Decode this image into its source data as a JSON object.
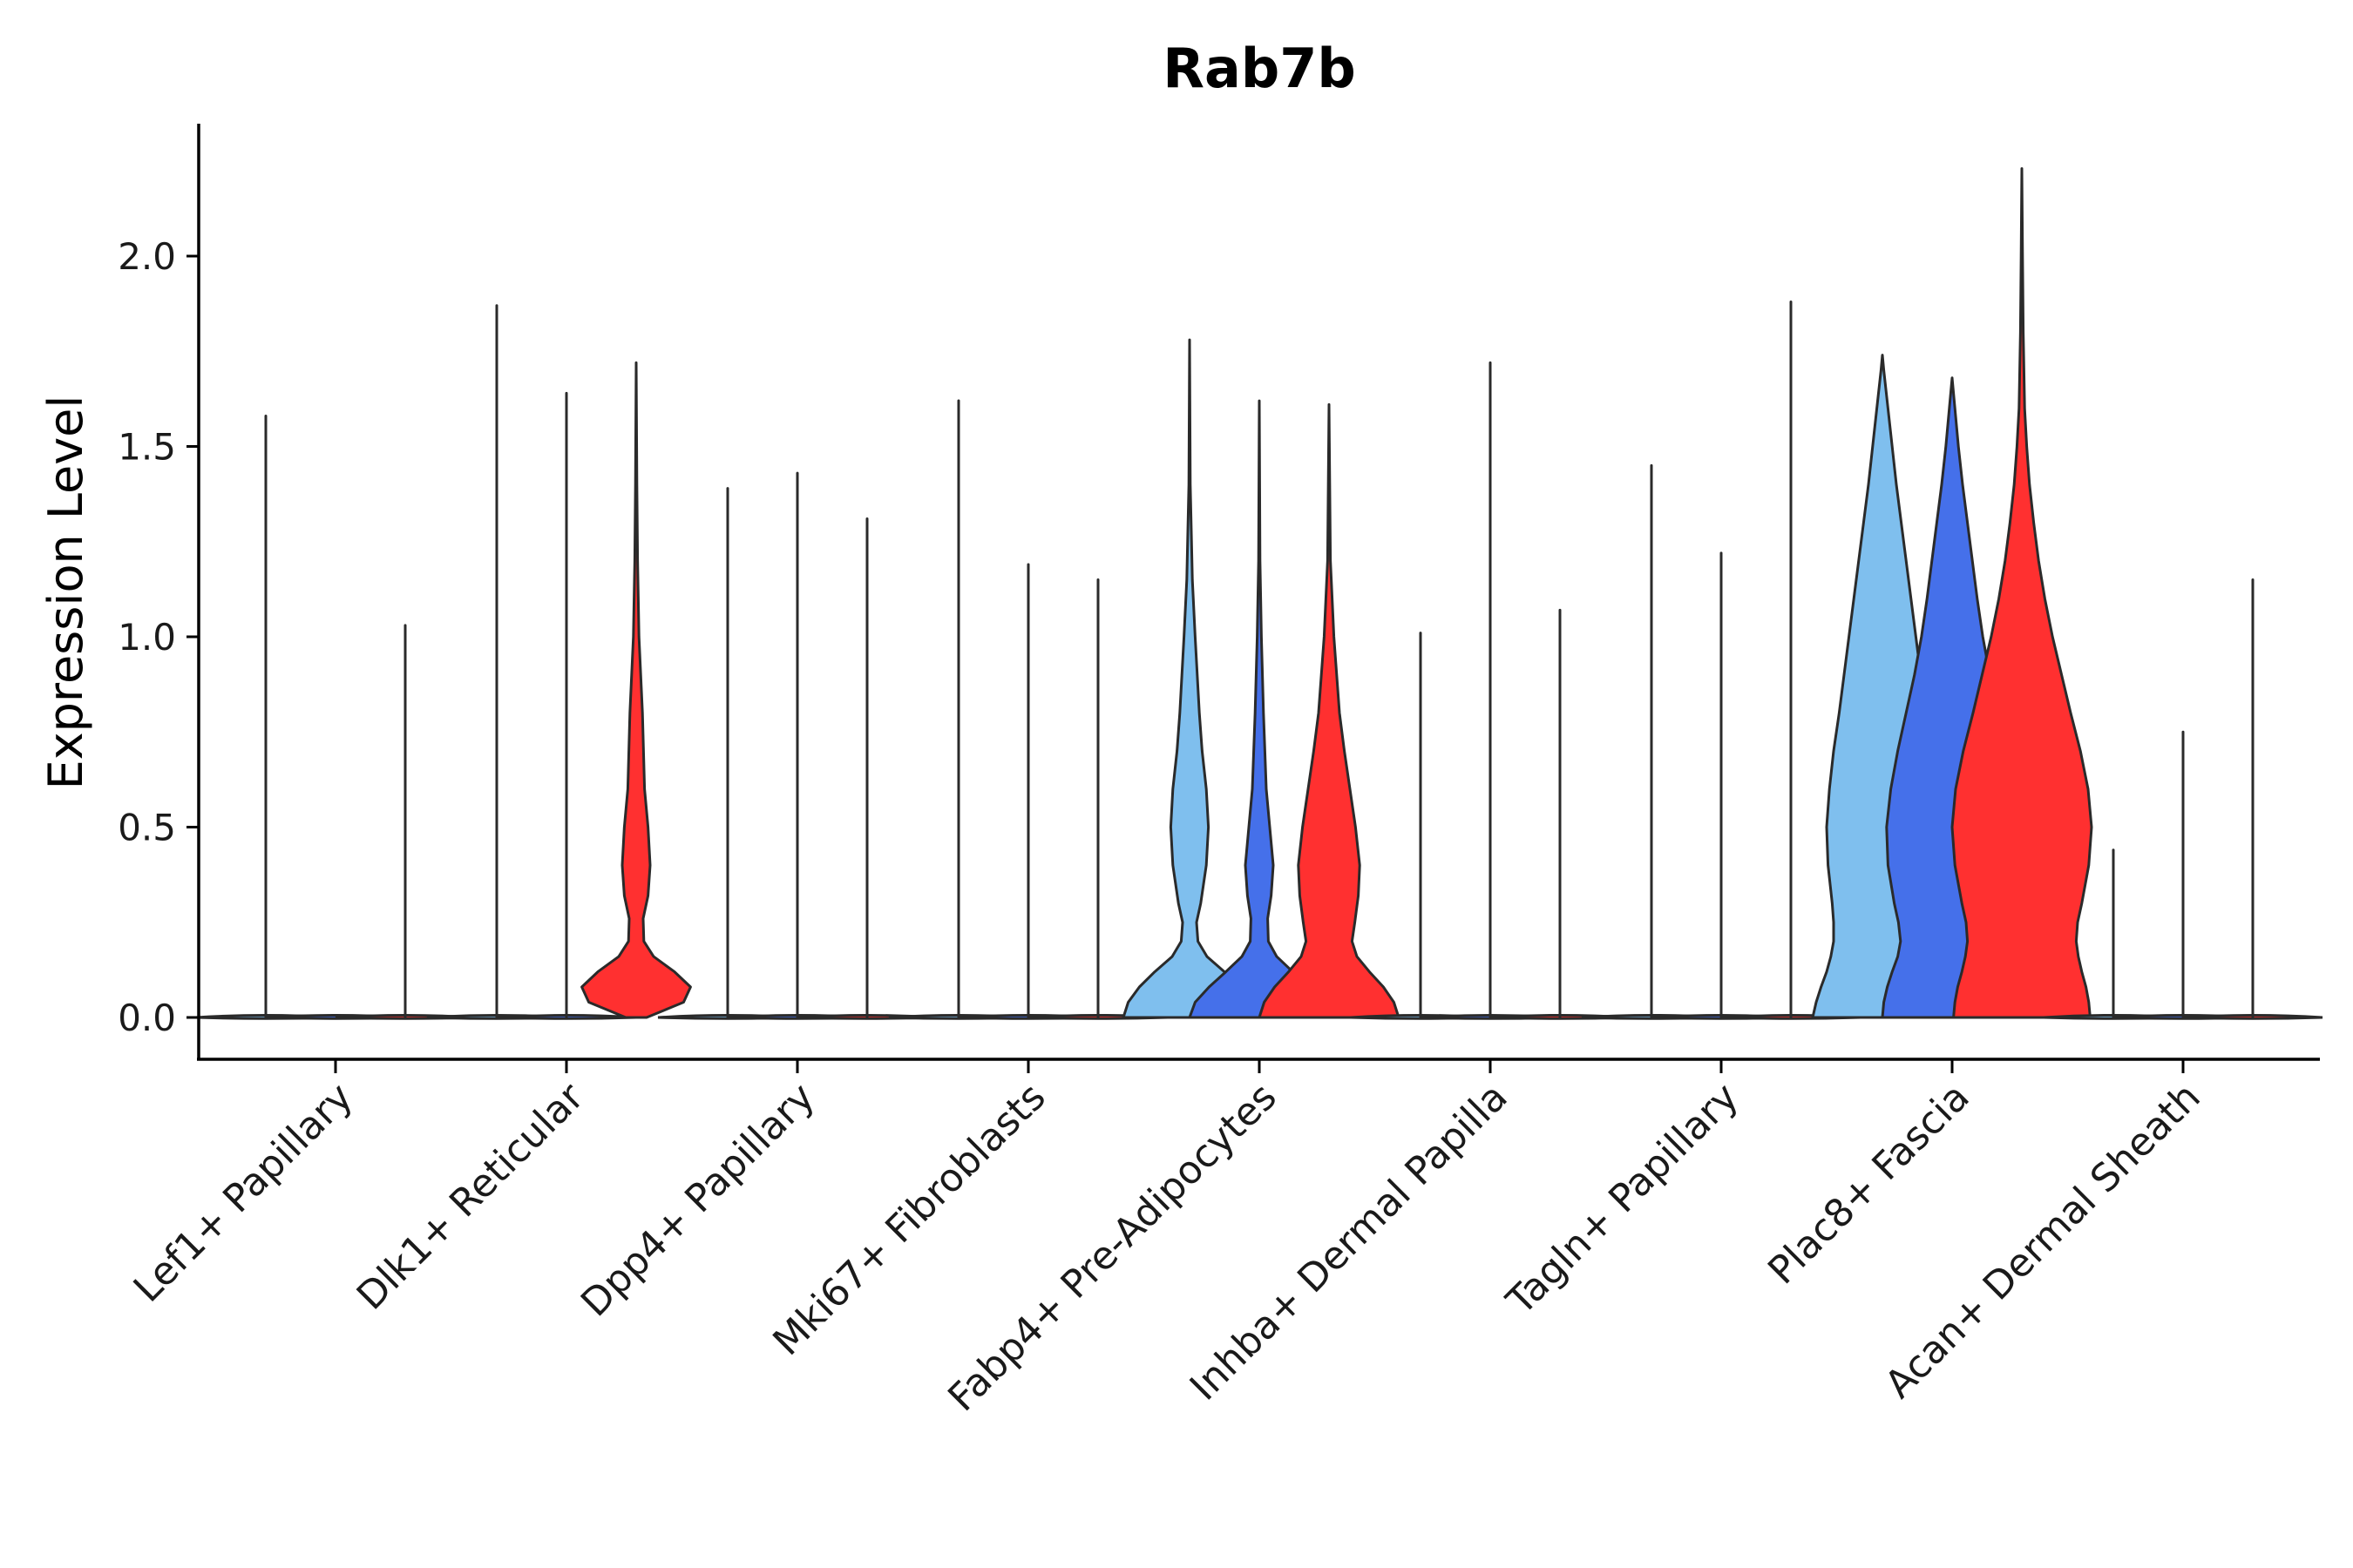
{
  "chart_data": {
    "type": "violin",
    "title": "Rab7b",
    "xlabel": "",
    "ylabel": "Expression Level",
    "ylim": [
      -0.11,
      2.35
    ],
    "yticks": [
      "0.0",
      "0.5",
      "1.0",
      "1.5",
      "2.0"
    ],
    "ytick_values": [
      0.0,
      0.5,
      1.0,
      1.5,
      2.0
    ],
    "colors": {
      "light_blue": "#7fbfee",
      "royal_blue": "#4570ea",
      "red": "#ff3030",
      "outline": "#2a2a2a"
    },
    "series_colors": [
      "#7fbfee",
      "#4570ea",
      "#ff3030"
    ],
    "categories": [
      {
        "label": "Lef1+ Papillary",
        "violins": [
          {
            "max": 1.58,
            "profile": []
          },
          {
            "max": 0.0,
            "profile": []
          },
          {
            "max": 1.03,
            "profile": []
          }
        ]
      },
      {
        "label": "Dlk1+ Reticular",
        "violins": [
          {
            "max": 1.87,
            "profile": []
          },
          {
            "max": 1.64,
            "profile": []
          },
          {
            "max": 1.72,
            "profile": [
              [
                0,
                0.15
              ],
              [
                0.04,
                0.68
              ],
              [
                0.08,
                0.78
              ],
              [
                0.12,
                0.55
              ],
              [
                0.16,
                0.25
              ],
              [
                0.2,
                0.11
              ],
              [
                0.26,
                0.1
              ],
              [
                0.32,
                0.17
              ],
              [
                0.4,
                0.2
              ],
              [
                0.5,
                0.17
              ],
              [
                0.6,
                0.12
              ],
              [
                0.8,
                0.09
              ],
              [
                1.0,
                0.04
              ],
              [
                1.2,
                0.02
              ],
              [
                1.4,
                0.01
              ],
              [
                1.72,
                0.0
              ]
            ]
          }
        ]
      },
      {
        "label": "Dpp4+ Papillary",
        "violins": [
          {
            "max": 1.39,
            "profile": []
          },
          {
            "max": 1.43,
            "profile": []
          },
          {
            "max": 1.31,
            "profile": []
          }
        ]
      },
      {
        "label": "Mki67+ Fibroblasts",
        "violins": [
          {
            "max": 1.62,
            "profile": []
          },
          {
            "max": 1.19,
            "profile": []
          },
          {
            "max": 1.15,
            "profile": []
          }
        ]
      },
      {
        "label": "Fabp4+ Pre-Adipocytes",
        "violins": [
          {
            "max": 1.78,
            "profile": [
              [
                0,
                0.95
              ],
              [
                0.04,
                0.88
              ],
              [
                0.08,
                0.72
              ],
              [
                0.12,
                0.5
              ],
              [
                0.16,
                0.25
              ],
              [
                0.2,
                0.12
              ],
              [
                0.25,
                0.1
              ],
              [
                0.3,
                0.16
              ],
              [
                0.4,
                0.24
              ],
              [
                0.5,
                0.27
              ],
              [
                0.6,
                0.24
              ],
              [
                0.7,
                0.18
              ],
              [
                0.8,
                0.14
              ],
              [
                1.0,
                0.08
              ],
              [
                1.15,
                0.04
              ],
              [
                1.4,
                0.01
              ],
              [
                1.78,
                0.0
              ]
            ]
          },
          {
            "max": 1.62,
            "profile": [
              [
                0,
                1.0
              ],
              [
                0.04,
                0.92
              ],
              [
                0.08,
                0.72
              ],
              [
                0.12,
                0.48
              ],
              [
                0.16,
                0.25
              ],
              [
                0.2,
                0.13
              ],
              [
                0.26,
                0.12
              ],
              [
                0.32,
                0.17
              ],
              [
                0.4,
                0.2
              ],
              [
                0.48,
                0.16
              ],
              [
                0.6,
                0.1
              ],
              [
                0.8,
                0.06
              ],
              [
                1.0,
                0.03
              ],
              [
                1.2,
                0.01
              ],
              [
                1.62,
                0.0
              ]
            ]
          },
          {
            "max": 1.61,
            "profile": [
              [
                0,
                1.0
              ],
              [
                0.04,
                0.93
              ],
              [
                0.08,
                0.78
              ],
              [
                0.12,
                0.58
              ],
              [
                0.16,
                0.4
              ],
              [
                0.2,
                0.33
              ],
              [
                0.25,
                0.37
              ],
              [
                0.32,
                0.42
              ],
              [
                0.4,
                0.44
              ],
              [
                0.5,
                0.38
              ],
              [
                0.6,
                0.3
              ],
              [
                0.7,
                0.22
              ],
              [
                0.8,
                0.15
              ],
              [
                1.0,
                0.07
              ],
              [
                1.2,
                0.02
              ],
              [
                1.61,
                0.0
              ]
            ]
          }
        ]
      },
      {
        "label": "Inhba+ Dermal Papilla",
        "violins": [
          {
            "max": 1.01,
            "profile": []
          },
          {
            "max": 1.72,
            "profile": []
          },
          {
            "max": 1.07,
            "profile": []
          }
        ]
      },
      {
        "label": "Tagln+ Papillary",
        "violins": [
          {
            "max": 1.45,
            "profile": []
          },
          {
            "max": 1.22,
            "profile": []
          },
          {
            "max": 1.88,
            "profile": []
          }
        ]
      },
      {
        "label": "Plac8+ Fascia",
        "violins": [
          {
            "max": 1.74,
            "profile": [
              [
                0,
                1.0
              ],
              [
                0.04,
                0.95
              ],
              [
                0.08,
                0.88
              ],
              [
                0.12,
                0.8
              ],
              [
                0.16,
                0.74
              ],
              [
                0.2,
                0.7
              ],
              [
                0.25,
                0.7
              ],
              [
                0.3,
                0.72
              ],
              [
                0.4,
                0.78
              ],
              [
                0.5,
                0.8
              ],
              [
                0.6,
                0.76
              ],
              [
                0.7,
                0.7
              ],
              [
                0.8,
                0.62
              ],
              [
                0.9,
                0.55
              ],
              [
                1.0,
                0.48
              ],
              [
                1.1,
                0.41
              ],
              [
                1.2,
                0.34
              ],
              [
                1.3,
                0.27
              ],
              [
                1.4,
                0.2
              ],
              [
                1.5,
                0.14
              ],
              [
                1.6,
                0.08
              ],
              [
                1.7,
                0.02
              ],
              [
                1.74,
                0.0
              ]
            ]
          },
          {
            "max": 1.68,
            "profile": [
              [
                0,
                1.0
              ],
              [
                0.04,
                0.98
              ],
              [
                0.08,
                0.93
              ],
              [
                0.12,
                0.86
              ],
              [
                0.16,
                0.78
              ],
              [
                0.2,
                0.74
              ],
              [
                0.25,
                0.77
              ],
              [
                0.3,
                0.83
              ],
              [
                0.4,
                0.92
              ],
              [
                0.5,
                0.94
              ],
              [
                0.6,
                0.88
              ],
              [
                0.7,
                0.78
              ],
              [
                0.8,
                0.66
              ],
              [
                0.9,
                0.54
              ],
              [
                1.0,
                0.44
              ],
              [
                1.1,
                0.36
              ],
              [
                1.2,
                0.29
              ],
              [
                1.3,
                0.22
              ],
              [
                1.4,
                0.15
              ],
              [
                1.5,
                0.09
              ],
              [
                1.6,
                0.04
              ],
              [
                1.68,
                0.0
              ]
            ]
          },
          {
            "max": 2.23,
            "profile": [
              [
                0,
                0.98
              ],
              [
                0.04,
                0.96
              ],
              [
                0.08,
                0.92
              ],
              [
                0.12,
                0.86
              ],
              [
                0.16,
                0.81
              ],
              [
                0.2,
                0.78
              ],
              [
                0.25,
                0.8
              ],
              [
                0.3,
                0.86
              ],
              [
                0.4,
                0.96
              ],
              [
                0.5,
                1.0
              ],
              [
                0.6,
                0.95
              ],
              [
                0.7,
                0.84
              ],
              [
                0.8,
                0.7
              ],
              [
                0.9,
                0.57
              ],
              [
                1.0,
                0.44
              ],
              [
                1.1,
                0.33
              ],
              [
                1.2,
                0.24
              ],
              [
                1.3,
                0.17
              ],
              [
                1.4,
                0.11
              ],
              [
                1.5,
                0.07
              ],
              [
                1.6,
                0.04
              ],
              [
                1.8,
                0.02
              ],
              [
                2.0,
                0.01
              ],
              [
                2.23,
                0.0
              ]
            ]
          }
        ]
      },
      {
        "label": "Acan+ Dermal Sheath",
        "violins": [
          {
            "max": 0.44,
            "profile": []
          },
          {
            "max": 0.75,
            "profile": []
          },
          {
            "max": 1.15,
            "profile": []
          }
        ]
      }
    ]
  }
}
